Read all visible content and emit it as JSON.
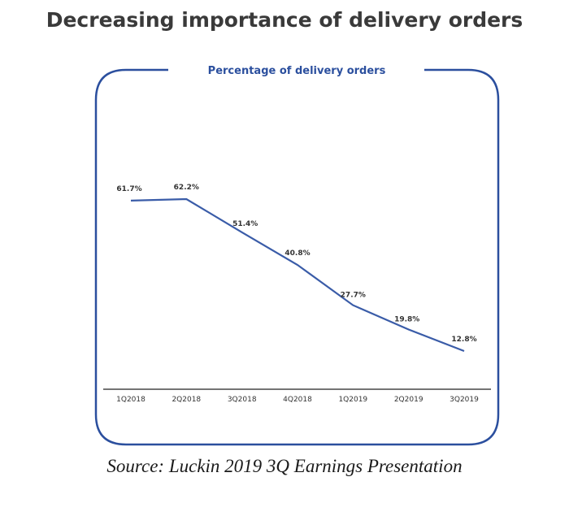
{
  "title": "Decreasing importance of delivery orders",
  "source": "Source: Luckin 2019 3Q Earnings Presentation",
  "colors": {
    "frame": "#2b4f9e",
    "line": "#3a5ca8",
    "axis": "#222222"
  },
  "chart_data": {
    "type": "line",
    "title": "Percentage of delivery orders",
    "xlabel": "",
    "ylabel": "",
    "ylim": [
      0,
      70
    ],
    "categories": [
      "1Q2018",
      "2Q2018",
      "3Q2018",
      "4Q2018",
      "1Q2019",
      "2Q2019",
      "3Q2019"
    ],
    "values": [
      61.7,
      62.2,
      51.4,
      40.8,
      27.7,
      19.8,
      12.8
    ],
    "labels": [
      "61.7%",
      "62.2%",
      "51.4%",
      "40.8%",
      "27.7%",
      "19.8%",
      "12.8%"
    ]
  }
}
